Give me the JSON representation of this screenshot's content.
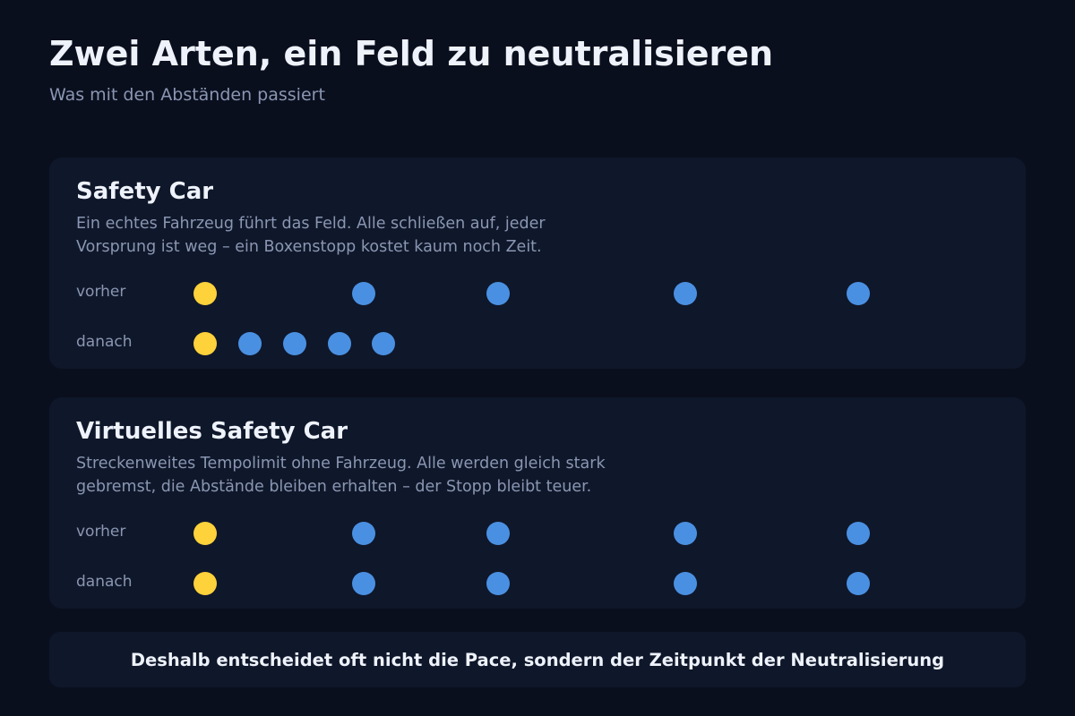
{
  "header": {
    "title": "Zwei Arten, ein Feld zu neutralisieren",
    "subtitle": "Was mit den Abständen passiert"
  },
  "colors": {
    "leader_car": "#fdd23a",
    "other_car": "#4a90e2",
    "panel_bg": "#0f172a",
    "page_bg": "#0a0f1e"
  },
  "panels": [
    {
      "title": "Safety Car",
      "description_lines": [
        "Ein echtes Fahrzeug führt das Feld. Alle schließen auf, jeder",
        "Vorsprung ist weg – ein Boxenstopp kostet kaum noch Zeit."
      ],
      "rows": [
        {
          "label": "vorher",
          "car_positions": [
            0,
            0.2345,
            0.4345,
            0.7121,
            0.9684
          ]
        },
        {
          "label": "danach",
          "car_positions": [
            0,
            0.0666,
            0.1329,
            0.1986,
            0.2649
          ]
        }
      ]
    },
    {
      "title": "Virtuelles Safety Car",
      "description_lines": [
        "Streckenweites Tempolimit ohne Fahrzeug. Alle werden gleich stark",
        "gebremst, die Abstände bleiben erhalten – der Stopp bleibt teuer."
      ],
      "rows": [
        {
          "label": "vorher",
          "car_positions": [
            0,
            0.2345,
            0.4345,
            0.7121,
            0.9684
          ]
        },
        {
          "label": "danach",
          "car_positions": [
            0,
            0.2345,
            0.4345,
            0.7121,
            0.9684
          ]
        }
      ]
    }
  ],
  "footer": {
    "text": "Deshalb entscheidet oft nicht die Pace, sondern der Zeitpunkt der Neutralisierung"
  }
}
